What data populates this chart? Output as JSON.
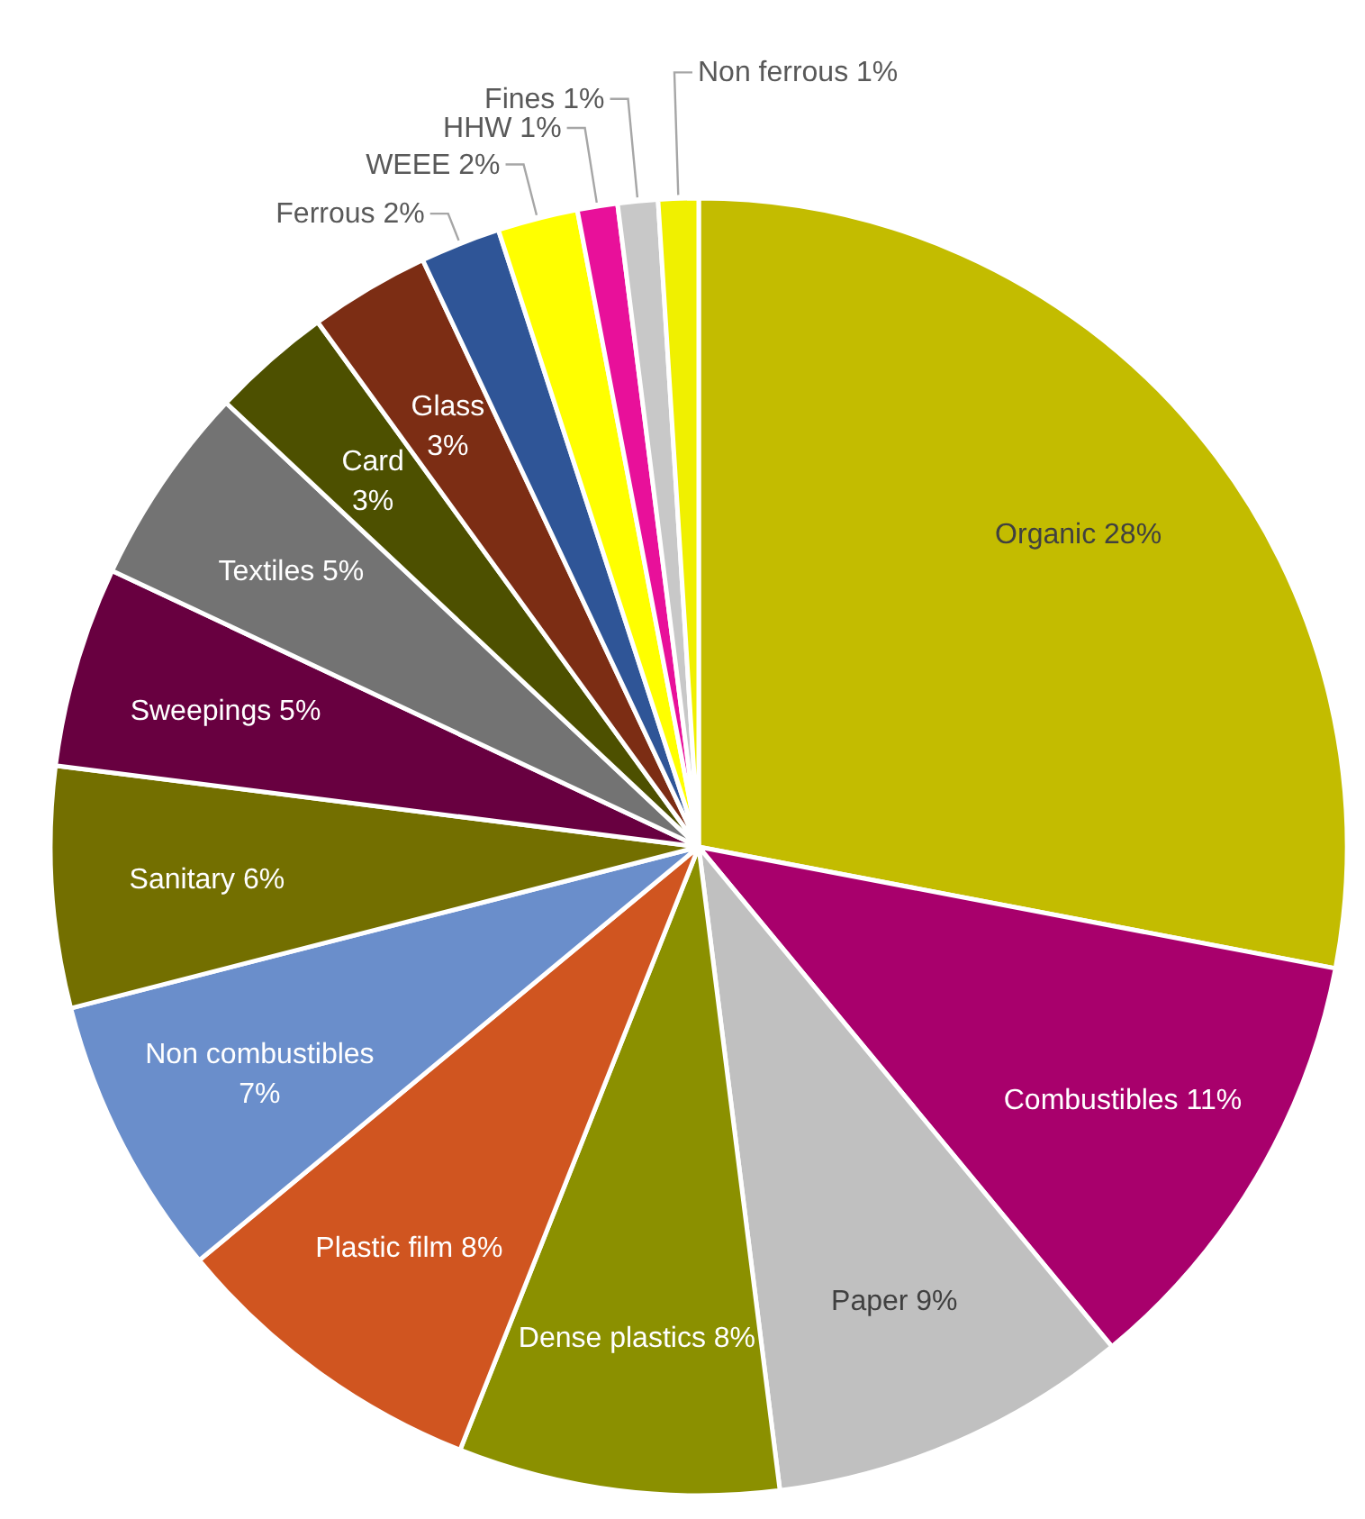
{
  "chart_data": {
    "type": "pie",
    "categories": [
      "Organic",
      "Combustibles",
      "Paper",
      "Dense plastics",
      "Plastic film",
      "Non combustibles",
      "Sanitary",
      "Sweepings",
      "Textiles",
      "Card",
      "Glass",
      "Ferrous",
      "WEEE",
      "HHW",
      "Fines",
      "Non ferrous"
    ],
    "values": [
      28,
      11,
      9,
      8,
      8,
      7,
      6,
      5,
      5,
      3,
      3,
      2,
      2,
      1,
      1,
      1
    ],
    "value_labels": [
      "28%",
      "11%",
      "9%",
      "8%",
      "8%",
      "7%",
      "6%",
      "5%",
      "5%",
      "3%",
      "3%",
      "2%",
      "2%",
      "1%",
      "1%",
      "1%"
    ],
    "colors": [
      "#c3bc00",
      "#a8006c",
      "#c0c0c0",
      "#8b9000",
      "#d05520",
      "#6a8ecb",
      "#736f00",
      "#680040",
      "#737373",
      "#4d5000",
      "#7c2d14",
      "#2f5597",
      "#ffff00",
      "#e8109a",
      "#c8c8c8",
      "#f0f000"
    ]
  }
}
